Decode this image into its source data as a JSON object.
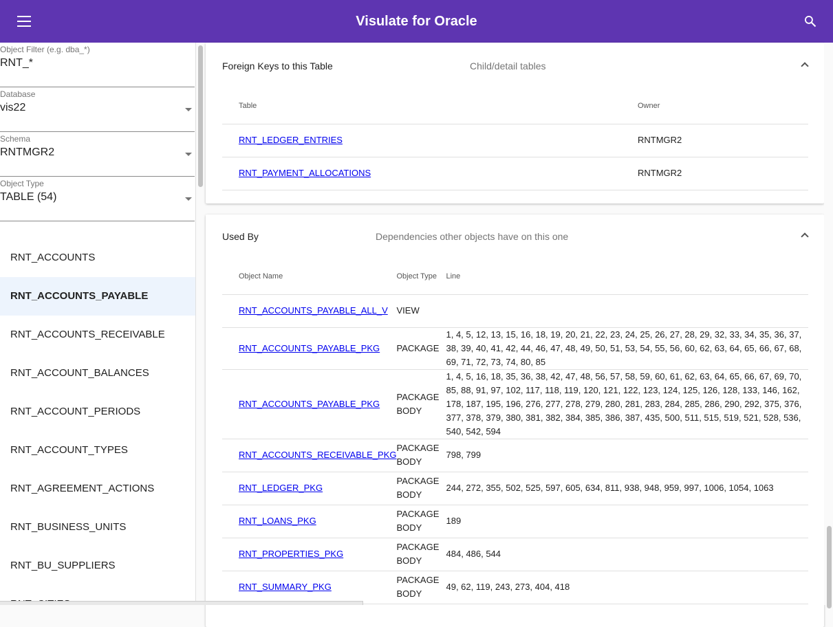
{
  "header": {
    "title": "Visulate for Oracle",
    "menu_icon": "menu-icon",
    "search_icon": "search-icon",
    "color": "#5e35b1"
  },
  "sidebar": {
    "filter": {
      "label": "Object Filter (e.g. dba_*)",
      "value": "RNT_*"
    },
    "database": {
      "label": "Database",
      "value": "vis22"
    },
    "schema": {
      "label": "Schema",
      "value": "RNTMGR2"
    },
    "object_type": {
      "label": "Object Type",
      "value": "TABLE (54)"
    },
    "items": [
      "RNT_ACCOUNTS",
      "RNT_ACCOUNTS_PAYABLE",
      "RNT_ACCOUNTS_RECEIVABLE",
      "RNT_ACCOUNT_BALANCES",
      "RNT_ACCOUNT_PERIODS",
      "RNT_ACCOUNT_TYPES",
      "RNT_AGREEMENT_ACTIONS",
      "RNT_BUSINESS_UNITS",
      "RNT_BU_SUPPLIERS",
      "RNT_CITIES"
    ],
    "selected": "RNT_ACCOUNTS_PAYABLE"
  },
  "foreign_keys": {
    "title": "Foreign Keys to this Table",
    "description": "Child/detail tables",
    "columns": [
      "Table",
      "Owner"
    ],
    "rows": [
      {
        "table": "RNT_LEDGER_ENTRIES",
        "owner": "RNTMGR2"
      },
      {
        "table": "RNT_PAYMENT_ALLOCATIONS",
        "owner": "RNTMGR2"
      }
    ]
  },
  "used_by": {
    "title": "Used By",
    "description": "Dependencies other objects have on this one",
    "columns": [
      "Object Name",
      "Object Type",
      "Line"
    ],
    "rows": [
      {
        "name": "RNT_ACCOUNTS_PAYABLE_ALL_V",
        "type": "VIEW",
        "lines": ""
      },
      {
        "name": "RNT_ACCOUNTS_PAYABLE_PKG",
        "type": "PACKAGE",
        "lines": "1, 4, 5, 12, 13, 15, 16, 18, 19, 20, 21, 22, 23, 24, 25, 26, 27, 28, 29, 32, 33, 34, 35, 36, 37, 38, 39, 40, 41, 42, 44, 46, 47, 48, 49, 50, 51, 53, 54, 55, 56, 60, 62, 63, 64, 65, 66, 67, 68, 69, 71, 72, 73, 74, 80, 85"
      },
      {
        "name": "RNT_ACCOUNTS_PAYABLE_PKG",
        "type": "PACKAGE BODY",
        "lines": "1, 4, 5, 16, 18, 35, 36, 38, 42, 47, 48, 56, 57, 58, 59, 60, 61, 62, 63, 64, 65, 66, 67, 69, 70, 85, 88, 91, 97, 102, 117, 118, 119, 120, 121, 122, 123, 124, 125, 126, 128, 133, 146, 162, 178, 187, 195, 196, 276, 277, 278, 279, 280, 281, 283, 284, 285, 286, 290, 292, 375, 376, 377, 378, 379, 380, 381, 382, 384, 385, 386, 387, 435, 500, 511, 515, 519, 521, 528, 536, 540, 542, 594"
      },
      {
        "name": "RNT_ACCOUNTS_RECEIVABLE_PKG",
        "type": "PACKAGE BODY",
        "lines": "798, 799"
      },
      {
        "name": "RNT_LEDGER_PKG",
        "type": "PACKAGE BODY",
        "lines": "244, 272, 355, 502, 525, 597, 605, 634, 811, 938, 948, 959, 997, 1006, 1054, 1063"
      },
      {
        "name": "RNT_LOANS_PKG",
        "type": "PACKAGE BODY",
        "lines": "189"
      },
      {
        "name": "RNT_PROPERTIES_PKG",
        "type": "PACKAGE BODY",
        "lines": "484, 486, 544"
      },
      {
        "name": "RNT_SUMMARY_PKG",
        "type": "PACKAGE BODY",
        "lines": "49, 62, 119, 243, 273, 404, 418"
      }
    ]
  }
}
